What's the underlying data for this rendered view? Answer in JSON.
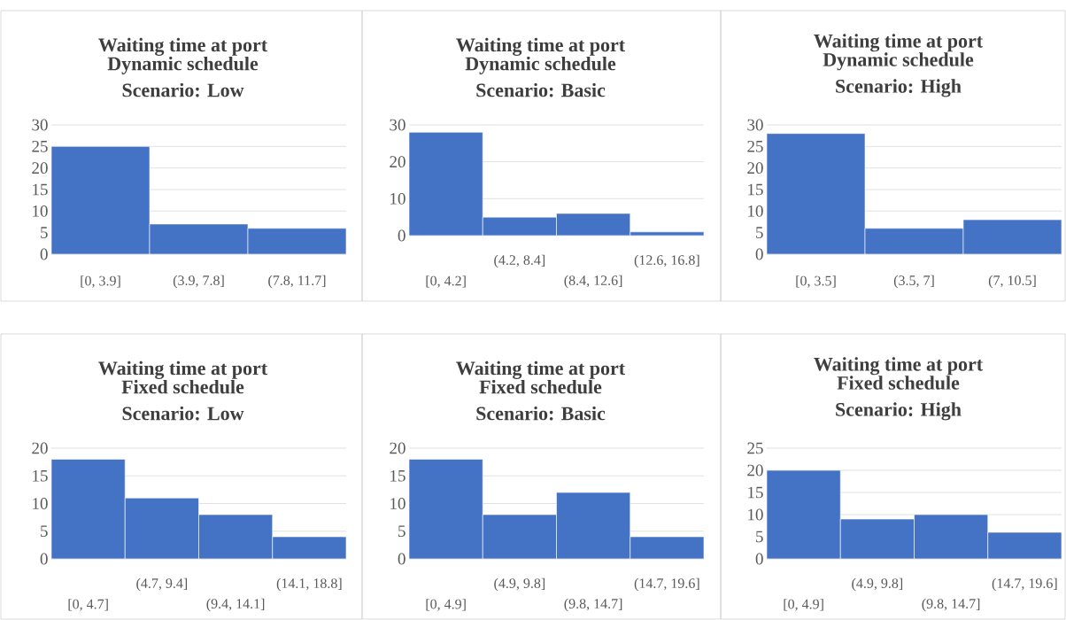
{
  "chart_data": [
    {
      "type": "bar",
      "title": "Waiting time at port",
      "subtitle": "Dynamic schedule Scenario: Low",
      "categories": [
        "[0, 3.9]",
        "(3.9, 7.8]",
        "(7.8, 11.7]"
      ],
      "values": [
        25,
        7,
        6
      ],
      "color": "#4472c4",
      "ylim": [
        0,
        30
      ],
      "yticks": [
        0,
        5,
        10,
        15,
        20,
        25,
        30
      ],
      "grid": "y"
    },
    {
      "type": "bar",
      "title": "Waiting time at port",
      "subtitle": "Dynamic schedule Scenario: Basic",
      "categories": [
        "[0, 4.2]",
        "(4.2, 8.4]",
        "(8.4, 12.6]",
        "(12.6, 16.8]"
      ],
      "values": [
        28,
        5,
        6,
        1
      ],
      "color": "#4472c4",
      "ylim": [
        0,
        30
      ],
      "yticks": [
        0,
        10,
        20,
        30
      ],
      "grid": "y"
    },
    {
      "type": "bar",
      "title": "Waiting time at port",
      "subtitle": "Dynamic schedule Scenario: High",
      "categories": [
        "[0, 3.5]",
        "(3.5, 7]",
        "(7, 10.5]"
      ],
      "values": [
        28,
        6,
        8
      ],
      "color": "#4472c4",
      "ylim": [
        0,
        30
      ],
      "yticks": [
        0,
        5,
        10,
        15,
        20,
        25,
        30
      ],
      "grid": "y"
    },
    {
      "type": "bar",
      "title": "Waiting time at port",
      "subtitle": "Fixed schedule Scenario: Low",
      "categories": [
        "[0, 4.7]",
        "(4.7, 9.4]",
        "(9.4, 14.1]",
        "(14.1, 18.8]"
      ],
      "values": [
        18,
        11,
        8,
        4
      ],
      "color": "#4472c4",
      "ylim": [
        0,
        20
      ],
      "yticks": [
        0,
        5,
        10,
        15,
        20
      ],
      "grid": "y"
    },
    {
      "type": "bar",
      "title": "Waiting time at port",
      "subtitle": "Fixed schedule Scenario: Basic",
      "categories": [
        "[0, 4.9]",
        "(4.9, 9.8]",
        "(9.8, 14.7]",
        "(14.7, 19.6]"
      ],
      "values": [
        18,
        8,
        12,
        4
      ],
      "color": "#4472c4",
      "ylim": [
        0,
        20
      ],
      "yticks": [
        0,
        5,
        10,
        15,
        20
      ],
      "grid": "y"
    },
    {
      "type": "bar",
      "title": "Waiting time at port",
      "subtitle": "Fixed schedule Scenario: High",
      "categories": [
        "[0, 4.9]",
        "(4.9, 9.8]",
        "(9.8, 14.7]",
        "(14.7, 19.6]"
      ],
      "values": [
        20,
        9,
        10,
        6
      ],
      "color": "#4472c4",
      "ylim": [
        0,
        25
      ],
      "yticks": [
        0,
        5,
        10,
        15,
        20,
        25
      ],
      "grid": "y"
    }
  ]
}
